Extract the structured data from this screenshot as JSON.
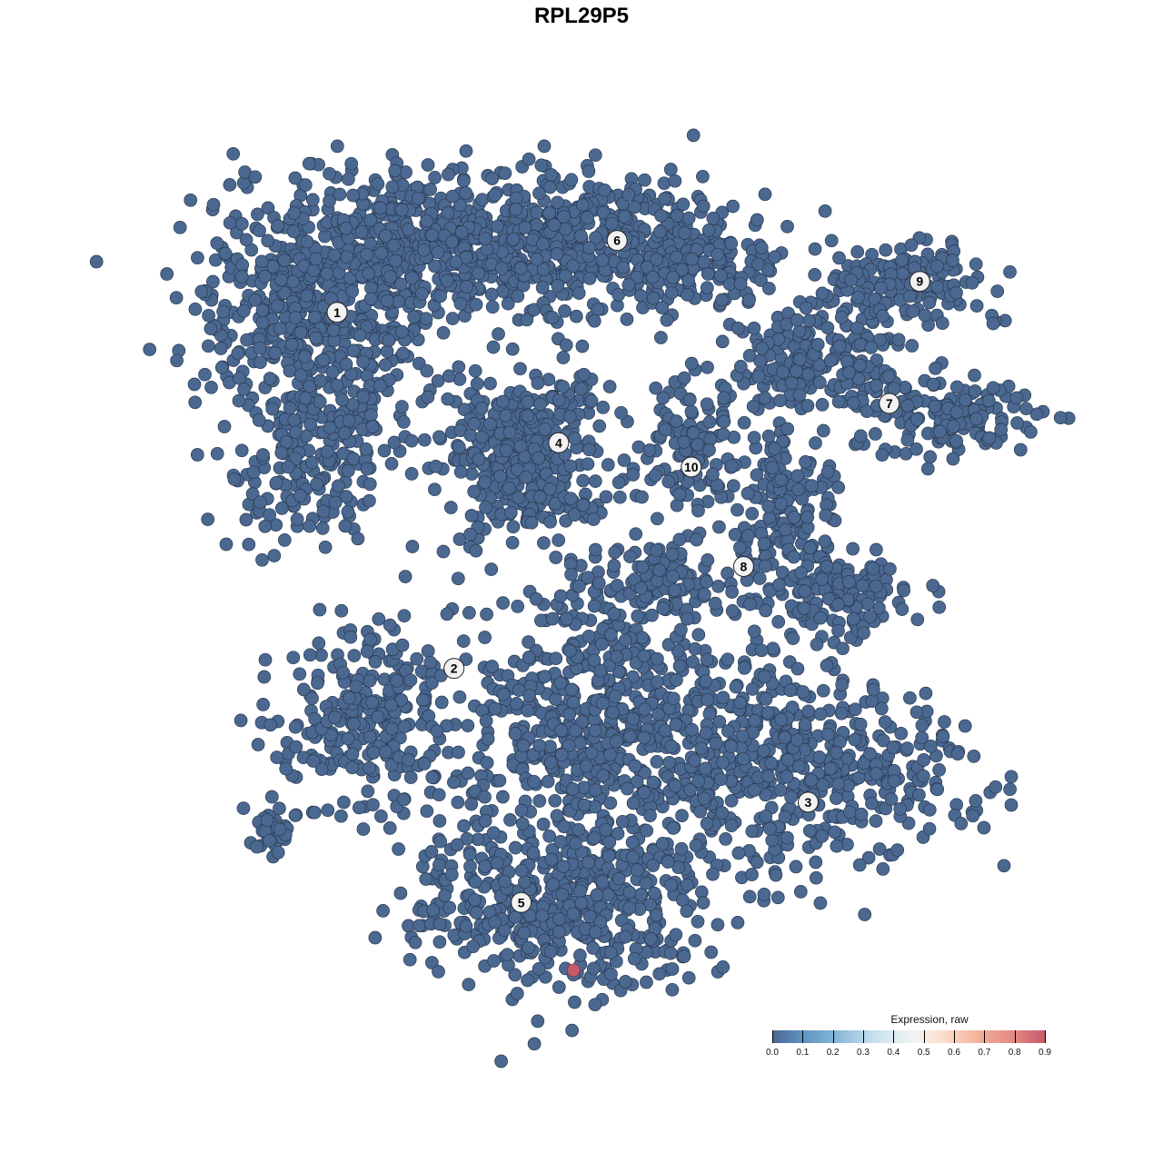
{
  "chart_data": {
    "type": "scatter",
    "title": "RPL29P5",
    "xlabel": "",
    "ylabel": "",
    "axes_visible": false,
    "grid": false,
    "xlim": [
      -50,
      50
    ],
    "ylim": [
      -50,
      50
    ],
    "point_color": "#4a6890",
    "point_stroke": "#2b3a52",
    "highlight_color": "#c8596a",
    "clusters": [
      {
        "label": "1",
        "label_pos": [
          -30.1,
          32.2
        ],
        "blobs": [
          {
            "center": [
              -32.3,
              33.7
            ],
            "spread": [
              7.3,
              6.5
            ],
            "n": 500
          },
          {
            "center": [
              -33.3,
              17.4
            ],
            "spread": [
              4.7,
              6.5
            ],
            "n": 250
          },
          {
            "center": [
              -18.8,
              41.3
            ],
            "spread": [
              8.3,
              4.3
            ],
            "n": 300
          }
        ]
      },
      {
        "label": "2",
        "label_pos": [
          -16.7,
          -10.4
        ],
        "blobs": [
          {
            "center": [
              -27.1,
              -16.3
            ],
            "spread": [
              5.2,
              5.4
            ],
            "n": 250
          },
          {
            "center": [
              -36.5,
              -29.3
            ],
            "spread": [
              2.1,
              1.6
            ],
            "n": 30
          }
        ]
      },
      {
        "label": "3",
        "label_pos": [
          23.9,
          -26.4
        ],
        "blobs": [
          {
            "center": [
              25.0,
              -22.8
            ],
            "spread": [
              8.3,
              5.4
            ],
            "n": 400
          },
          {
            "center": [
              2.1,
              -17.4
            ],
            "spread": [
              10.4,
              8.7
            ],
            "n": 800
          }
        ]
      },
      {
        "label": "4",
        "label_pos": [
          -4.7,
          16.6
        ],
        "blobs": [
          {
            "center": [
              -8.3,
              15.2
            ],
            "spread": [
              4.7,
              4.9
            ],
            "n": 400
          }
        ]
      },
      {
        "label": "5",
        "label_pos": [
          -9.0,
          -38.4
        ],
        "blobs": [
          {
            "center": [
              -5.2,
              -39.1
            ],
            "spread": [
              8.3,
              4.9
            ],
            "n": 450
          }
        ]
      },
      {
        "label": "6",
        "label_pos": [
          2.0,
          40.8
        ],
        "blobs": [
          {
            "center": [
              -4.2,
              40.2
            ],
            "spread": [
              9.4,
              4.3
            ],
            "n": 450
          },
          {
            "center": [
              10.4,
              38.0
            ],
            "spread": [
              5.2,
              3.3
            ],
            "n": 150
          }
        ]
      },
      {
        "label": "7",
        "label_pos": [
          33.2,
          21.3
        ],
        "blobs": [
          {
            "center": [
              25.0,
              26.1
            ],
            "spread": [
              5.2,
              3.3
            ],
            "n": 200
          },
          {
            "center": [
              39.6,
              19.6
            ],
            "spread": [
              5.2,
              2.7
            ],
            "n": 150
          }
        ]
      },
      {
        "label": "8",
        "label_pos": [
          16.5,
          1.8
        ],
        "blobs": [
          {
            "center": [
              20.8,
              8.7
            ],
            "spread": [
              3.1,
              5.4
            ],
            "n": 150
          },
          {
            "center": [
              27.1,
              -1.1
            ],
            "spread": [
              4.2,
              2.7
            ],
            "n": 120
          },
          {
            "center": [
              8.3,
              0.0
            ],
            "spread": [
              5.2,
              2.2
            ],
            "n": 100
          }
        ]
      },
      {
        "label": "9",
        "label_pos": [
          36.7,
          35.9
        ],
        "blobs": [
          {
            "center": [
              34.4,
              35.9
            ],
            "spread": [
              5.2,
              2.7
            ],
            "n": 150
          }
        ]
      },
      {
        "label": "10",
        "label_pos": [
          10.5,
          13.7
        ],
        "blobs": [
          {
            "center": [
              10.4,
              17.4
            ],
            "spread": [
              3.6,
              4.3
            ],
            "n": 120
          }
        ]
      }
    ],
    "highlight_points": [
      {
        "x": -3.0,
        "y": -46.5,
        "value": 0.9
      }
    ],
    "legend": {
      "title": "Expression, raw",
      "placement": "bottom-right",
      "ticks": [
        "0.0",
        "0.1",
        "0.2",
        "0.3",
        "0.4",
        "0.5",
        "0.6",
        "0.7",
        "0.8",
        "0.9"
      ],
      "range": [
        0,
        0.9
      ]
    }
  }
}
